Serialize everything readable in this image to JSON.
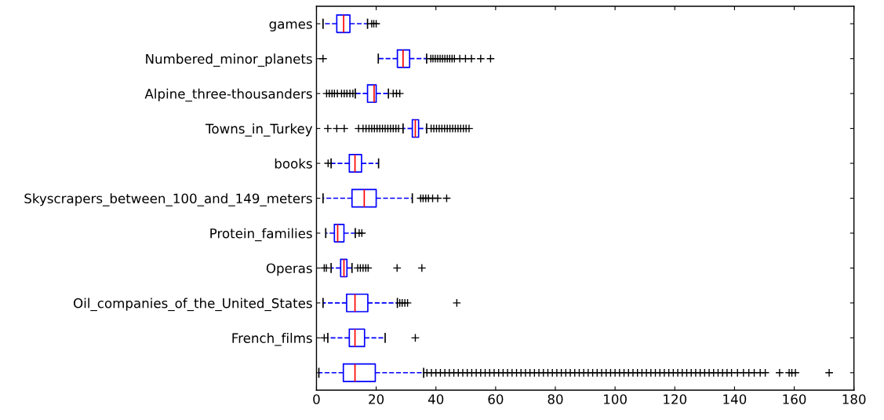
{
  "chart_data": {
    "type": "box",
    "orientation": "horizontal",
    "marker": "cross",
    "line_style": "dashed",
    "categories": [
      "games",
      "Numbered_minor_planets",
      "Alpine_three-thousanders",
      "Towns_in_Turkey",
      "books",
      "Skyscrapers_between_100_and_149_meters",
      "Protein_families",
      "Operas",
      "Oil_companies_of_the_United_States",
      "French_films",
      null
    ],
    "series": [
      {
        "color": "#0000ff",
        "boxes": [
          {
            "low": 2.2,
            "q1": 6.8,
            "median": 9.1,
            "q3": 11.2,
            "high": 17.1,
            "outliers": [
              18.5,
              19.2,
              20
            ]
          },
          {
            "low": 20.7,
            "q1": 27.1,
            "median": 29.0,
            "q3": 31.2,
            "high": 36.9,
            "outliers": [
              2.2,
              38.3,
              39,
              39.8,
              40.6,
              41.4,
              42.2,
              43,
              43.8,
              44.6,
              45.4,
              46.2,
              48,
              49.9,
              51.9,
              55,
              58.3
            ]
          },
          {
            "low": 13.0,
            "q1": 17.1,
            "median": 19.3,
            "q3": 20.0,
            "high": 24.1,
            "outliers": [
              3.4,
              4.3,
              5.2,
              6,
              7,
              8.4,
              9.3,
              10.2,
              11.2,
              12.2,
              25.7,
              26.8,
              27.9
            ]
          },
          {
            "low": 29.0,
            "q1": 32.1,
            "median": 33.1,
            "q3": 34.2,
            "high": 36.9,
            "outliers": [
              3.8,
              6.8,
              9.3,
              14.1,
              15.6,
              16.6,
              17.6,
              18.5,
              19.4,
              20.3,
              21.2,
              22.1,
              23,
              23.9,
              24.8,
              25.7,
              26.6,
              27.5,
              38.4,
              39.3,
              40.2,
              41.1,
              42,
              42.9,
              43.8,
              44.7,
              45.6,
              46.5,
              47.4,
              48.3,
              49.2,
              50.1,
              51.1
            ]
          },
          {
            "low": 4.9,
            "q1": 11.0,
            "median": 12.9,
            "q3": 15.1,
            "high": 20.8,
            "outliers": [
              3.9
            ]
          },
          {
            "low": 2.2,
            "q1": 11.9,
            "median": 16.0,
            "q3": 20.0,
            "high": 32.1,
            "outliers": [
              34.9,
              35.7,
              36.6,
              37.5,
              38.9,
              40.6,
              43.6
            ]
          },
          {
            "low": 3.1,
            "q1": 6.0,
            "median": 7.1,
            "q3": 9.2,
            "high": 13.0,
            "outliers": [
              14.3,
              15.2
            ]
          },
          {
            "low": 4.9,
            "q1": 8.1,
            "median": 9.2,
            "q3": 10.2,
            "high": 11.9,
            "outliers": [
              2.6,
              3.3,
              13.8,
              14.7,
              15.6,
              16.5,
              17.3,
              27.0,
              35.3
            ]
          },
          {
            "low": 2.2,
            "q1": 10.1,
            "median": 12.9,
            "q3": 17.2,
            "high": 27.1,
            "outliers": [
              27.9,
              28.7,
              29.6,
              30.5,
              47.0
            ]
          },
          {
            "low": 3.8,
            "q1": 11.0,
            "median": 12.9,
            "q3": 16.1,
            "high": 23.0,
            "outliers": [
              2.6,
              33.1
            ]
          },
          {
            "low": 0.8,
            "q1": 9.0,
            "median": 12.9,
            "q3": 19.7,
            "high": 35.9,
            "outliers": [
              37,
              38.5,
              40,
              41.5,
              43,
              44.5,
              46,
              47.5,
              49,
              50.5,
              52,
              53.5,
              55,
              56.5,
              58,
              59.5,
              61,
              62.5,
              64,
              65.5,
              67,
              68.5,
              70,
              71.5,
              73,
              74.5,
              76,
              77.5,
              79,
              80.5,
              82,
              83.5,
              85,
              86.5,
              88,
              89.5,
              91,
              92.5,
              94,
              95.5,
              97,
              98.5,
              100,
              101.5,
              103,
              104.5,
              106,
              107.5,
              109,
              110.5,
              112,
              113.5,
              115,
              116.5,
              118,
              119.5,
              121,
              122.5,
              124,
              125.5,
              127,
              128.5,
              130,
              131.5,
              133,
              134.5,
              136,
              137.5,
              139,
              141,
              143,
              144.8,
              146.6,
              148.6,
              150.3,
              155.1,
              158.3,
              159.2,
              160.4,
              171.7
            ]
          }
        ]
      }
    ],
    "xlim": [
      0,
      180
    ],
    "xticks": [
      0,
      20,
      40,
      60,
      80,
      100,
      120,
      140,
      160,
      180
    ],
    "grid": false
  }
}
